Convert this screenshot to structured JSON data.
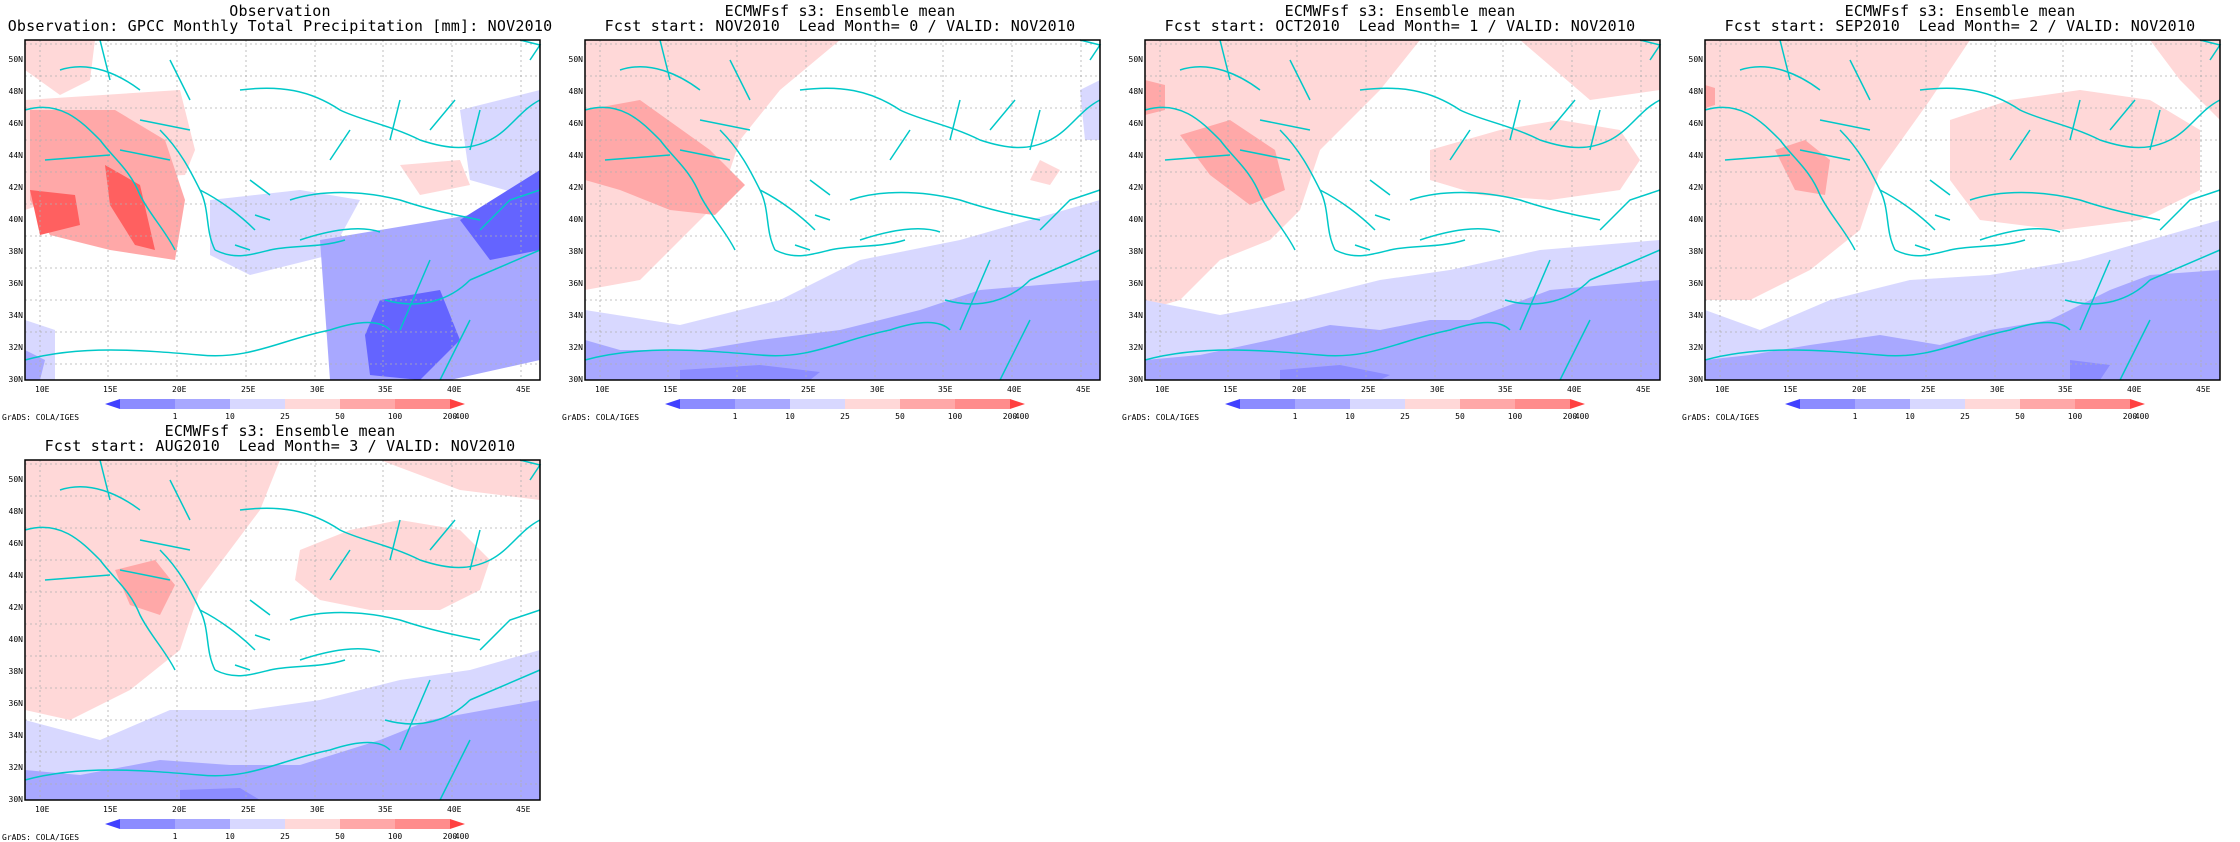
{
  "ticks": {
    "lon": [
      "10E",
      "15E",
      "20E",
      "25E",
      "30E",
      "35E",
      "40E",
      "45E"
    ],
    "lat": [
      "30N",
      "32N",
      "34N",
      "36N",
      "38N",
      "40N",
      "42N",
      "44N",
      "46N",
      "48N",
      "50N"
    ]
  },
  "colorbar": {
    "labels": [
      "1",
      "10",
      "25",
      "50",
      "100",
      "200",
      "400"
    ],
    "colors": [
      "#4040ff",
      "#8c8cff",
      "#a8a8ff",
      "#d8d8ff",
      "#ffd8d8",
      "#ffa8a8",
      "#ff8c8c",
      "#ff4040"
    ]
  },
  "footer": "GrADS: COLA/IGES",
  "colors": {
    "coast": "#00c8c8",
    "grid": "#b0b0b0"
  },
  "panels": [
    {
      "id": "observation",
      "title1": "Observation",
      "title2": "Observation: GPCC Monthly Total Precipitation [mm]: NOV2010"
    },
    {
      "id": "lead0",
      "title1": "ECMWFsf s3: Ensemble mean",
      "title2": "Fcst start: NOV2010  Lead Month= 0 / VALID: NOV2010"
    },
    {
      "id": "lead1",
      "title1": "ECMWFsf s3: Ensemble mean",
      "title2": "Fcst start: OCT2010  Lead Month= 1 / VALID: NOV2010"
    },
    {
      "id": "lead2",
      "title1": "ECMWFsf s3: Ensemble mean",
      "title2": "Fcst start: SEP2010  Lead Month= 2 / VALID: NOV2010"
    },
    {
      "id": "lead3",
      "title1": "ECMWFsf s3: Ensemble mean",
      "title2": "Fcst start: AUG2010  Lead Month= 3 / VALID: NOV2010"
    }
  ]
}
